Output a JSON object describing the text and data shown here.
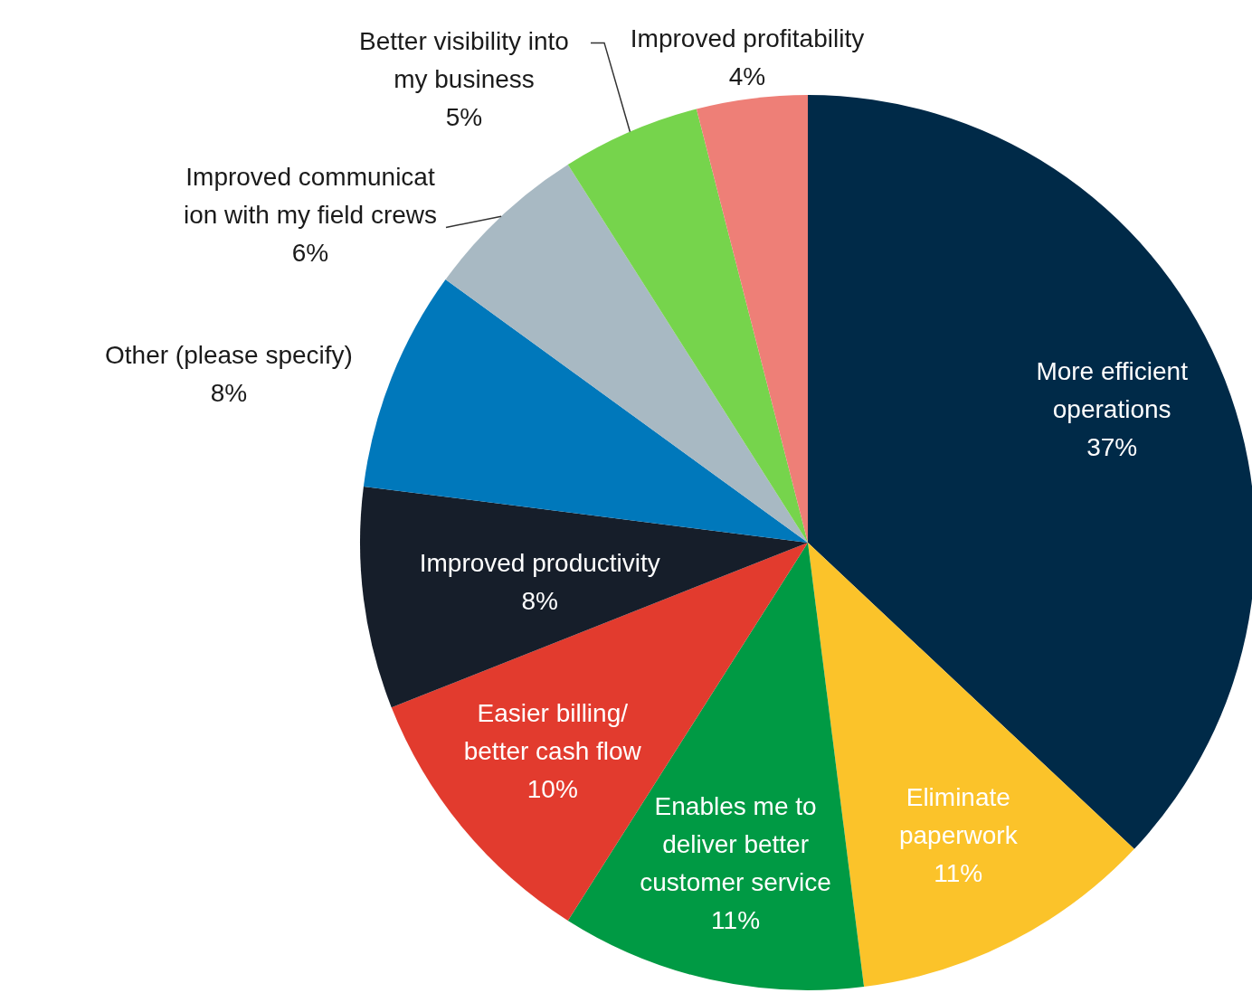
{
  "chart_data": {
    "type": "pie",
    "categories": [
      "More efficient\noperations",
      "Eliminate\npaperwork",
      "Enables me to\ndeliver better\ncustomer service",
      "Easier billing/\nbetter cash flow",
      "Improved productivity",
      "Other (please specify)",
      "Improved communicat\nion with my field crews",
      "Better visibility into\nmy business",
      "Improved profitability"
    ],
    "values": [
      37,
      11,
      11,
      10,
      8,
      8,
      6,
      5,
      4
    ],
    "colors": [
      "#002a48",
      "#fbc32a",
      "#009a44",
      "#e23b2e",
      "#161e2a",
      "#0078bb",
      "#a8b9c3",
      "#76d44c",
      "#ee7f77"
    ],
    "value_labels": [
      "37%",
      "11%",
      "11%",
      "10%",
      "8%",
      "8%",
      "6%",
      "5%",
      "4%"
    ]
  }
}
